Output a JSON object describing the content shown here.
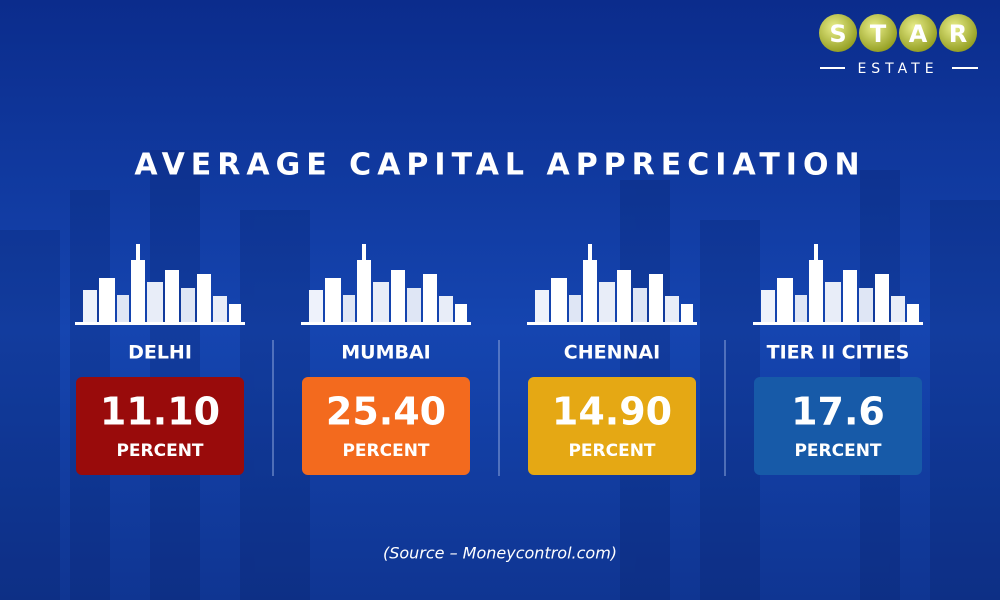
{
  "logo": {
    "letters": [
      "S",
      "T",
      "A",
      "R"
    ],
    "subtitle": "ESTATE"
  },
  "title": "AVERAGE CAPITAL APPRECIATION",
  "cards": [
    {
      "city": "DELHI",
      "value": "11.10",
      "unit": "PERCENT",
      "color": "#990b0b"
    },
    {
      "city": "MUMBAI",
      "value": "25.40",
      "unit": "PERCENT",
      "color": "#f36a1e"
    },
    {
      "city": "CHENNAI",
      "value": "14.90",
      "unit": "PERCENT",
      "color": "#e5a814"
    },
    {
      "city": "TIER II CITIES",
      "value": "17.6",
      "unit": "PERCENT",
      "color": "#175aa8"
    }
  ],
  "source": "(Source – Moneycontrol.com)"
}
